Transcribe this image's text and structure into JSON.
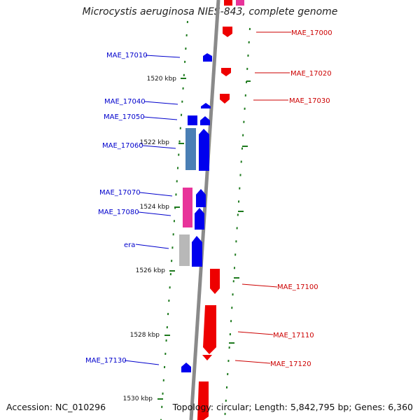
{
  "title": "Microcystis aeruginosa NIES-843, complete genome",
  "accession": "Accession: NC_010296",
  "topology": "Topology: circular; Length: 5,842,795 bp; Genes: 6,360",
  "colors": {
    "backbone": "#8a8a8a",
    "forward_gene": "#0000ee",
    "forward_label": "#0000cc",
    "reverse_gene": "#ee0000",
    "reverse_label": "#cc0000",
    "tick": "#1e7a1e",
    "pink": "#e8339a",
    "steelblue": "#4a7fb5",
    "grey": "#b8b8b8"
  },
  "ticks": [
    {
      "label": "1520 kbp"
    },
    {
      "label": "1522 kbp"
    },
    {
      "label": "1524 kbp"
    },
    {
      "label": "1526 kbp"
    },
    {
      "label": "1528 kbp"
    },
    {
      "label": "1530 kbp"
    }
  ],
  "left_labels": [
    {
      "text": "MAE_17010"
    },
    {
      "text": "MAE_17040"
    },
    {
      "text": "MAE_17050"
    },
    {
      "text": "MAE_17060"
    },
    {
      "text": "MAE_17070"
    },
    {
      "text": "MAE_17080"
    },
    {
      "text": "era"
    },
    {
      "text": "MAE_17130"
    }
  ],
  "right_labels": [
    {
      "text": "MAE_17000"
    },
    {
      "text": "MAE_17020"
    },
    {
      "text": "MAE_17030"
    },
    {
      "text": "MAE_17100"
    },
    {
      "text": "MAE_17110"
    },
    {
      "text": "MAE_17120"
    }
  ]
}
